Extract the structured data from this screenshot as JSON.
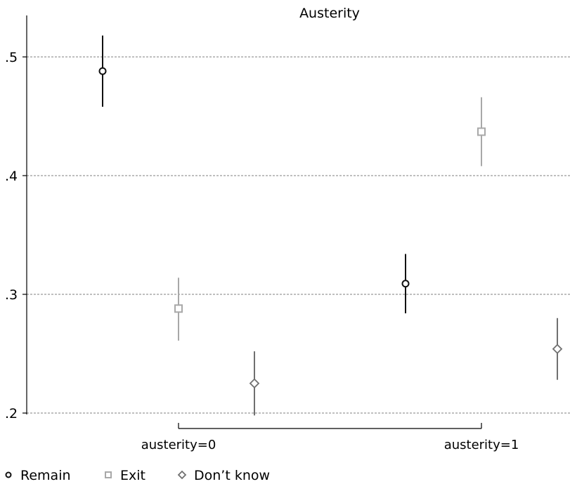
{
  "chart_data": {
    "type": "scatter",
    "title": "Austerity",
    "xlabel": "",
    "ylabel": "",
    "categories": [
      "austerity=0",
      "austerity=1"
    ],
    "ylim": [
      0.2,
      0.53
    ],
    "yticks": [
      {
        "value": 0.2,
        "label": ".2"
      },
      {
        "value": 0.3,
        "label": ".3"
      },
      {
        "value": 0.4,
        "label": ".4"
      },
      {
        "value": 0.5,
        "label": ".5"
      }
    ],
    "grid": "horizontal-dashed",
    "legend_position": "bottom-left",
    "series": [
      {
        "name": "Remain",
        "marker": "circle",
        "color": "#111111",
        "values": [
          0.488,
          0.309
        ],
        "lower": [
          0.458,
          0.284
        ],
        "upper": [
          0.518,
          0.334
        ]
      },
      {
        "name": "Exit",
        "marker": "square",
        "color": "#a8a8a8",
        "values": [
          0.288,
          0.437
        ],
        "lower": [
          0.261,
          0.408
        ],
        "upper": [
          0.314,
          0.466
        ]
      },
      {
        "name": "Don’t know",
        "marker": "diamond",
        "color": "#707070",
        "values": [
          0.225,
          0.254
        ],
        "lower": [
          0.198,
          0.228
        ],
        "upper": [
          0.252,
          0.28
        ]
      }
    ]
  }
}
